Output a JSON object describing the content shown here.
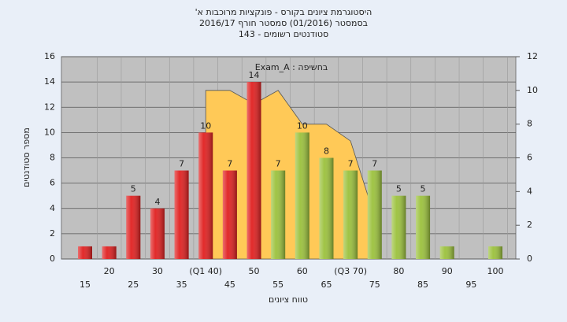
{
  "chart_data": {
    "type": "bar",
    "title": "היסטוגרמת ציונים בקורס - פונקציות מרוכבות א'",
    "subtitle": "בסמסטר (01/2016) סמסטר חורף 2016/17",
    "subtitle2": "סטודנטים רשומים - 143",
    "annotation": "בחשיפה : Exam_A",
    "x_label": "טווח ציונים",
    "y_label": "מספר סטודנטים",
    "categories": [
      "15",
      "20",
      "25",
      "30",
      "35",
      "(Q1 40)",
      "45",
      "50",
      "55",
      "60",
      "65",
      "(Q3 70)",
      "75",
      "80",
      "85",
      "90",
      "95",
      "100"
    ],
    "series": [
      {
        "colors": [
          "#e02020",
          "#e02020",
          "#e02020",
          "#e02020",
          "#e02020",
          "#e02020",
          "#e02020",
          "#e02020",
          "#9bc13c",
          "#9bc13c",
          "#9bc13c",
          "#9bc13c",
          "#9bc13c",
          "#9bc13c",
          "#9bc13c",
          "#9bc13c",
          "#9bc13c",
          "#9bc13c"
        ],
        "values": [
          1,
          1,
          5,
          4,
          7,
          10,
          7,
          14,
          7,
          10,
          8,
          7,
          7,
          5,
          5,
          1,
          0,
          1
        ],
        "value_labels": [
          null,
          null,
          "5",
          "4",
          "7",
          "10",
          "7",
          "14",
          "7",
          "10",
          "8",
          "7",
          "7",
          "5",
          "5",
          null,
          null,
          null
        ]
      },
      {
        "type": "area",
        "axis": "y2",
        "color": "#ffc957",
        "values": [
          null,
          null,
          null,
          null,
          null,
          10,
          10,
          9.2,
          10,
          8,
          8,
          7,
          2.5,
          null,
          null,
          null,
          null,
          null
        ]
      }
    ],
    "ylim": [
      0,
      16
    ],
    "yticks": [
      0,
      2,
      4,
      6,
      8,
      10,
      12,
      14,
      16
    ],
    "y2lim": [
      0,
      12
    ],
    "y2ticks": [
      0,
      2,
      4,
      6,
      8,
      10,
      12
    ],
    "grid": true
  }
}
